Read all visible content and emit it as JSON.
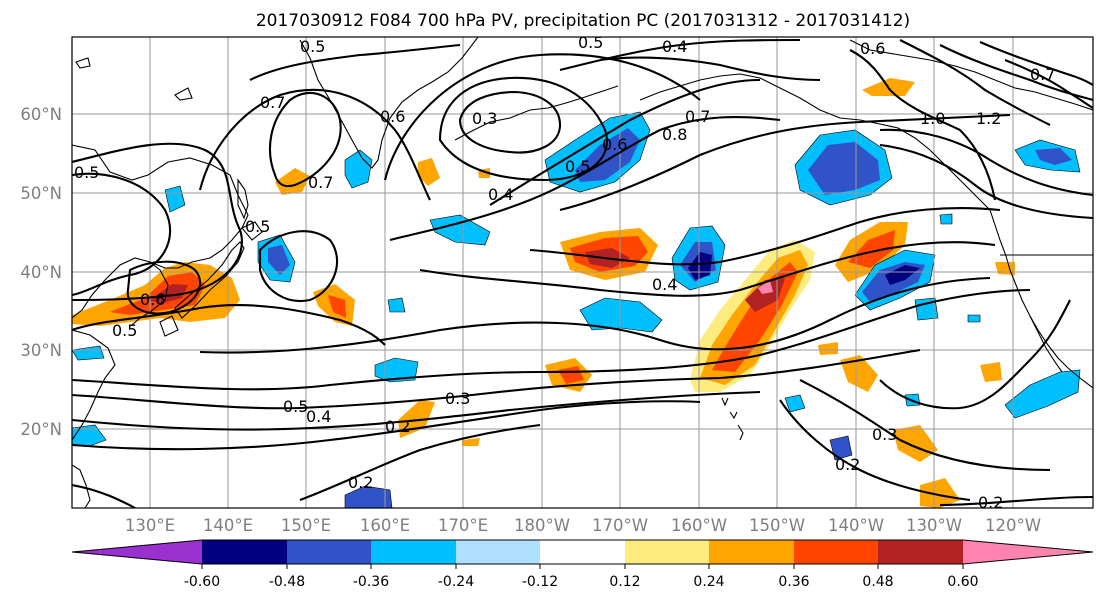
{
  "title": "2017030912 F084 700 hPa PV, precipitation PC (2017031312 - 2017031412)",
  "lat_labels": [
    "60°N",
    "50°N",
    "40°N",
    "30°N",
    "20°N"
  ],
  "lon_labels": [
    "130°E",
    "140°E",
    "150°E",
    "160°E",
    "170°E",
    "180°W",
    "170°W",
    "160°W",
    "150°W",
    "140°W",
    "130°W",
    "120°W"
  ],
  "colorbar": {
    "colors": [
      "#9b30d0",
      "#000080",
      "#3153c8",
      "#00bfff",
      "#b0e0ff",
      "#ffffff",
      "#ffec80",
      "#ffa500",
      "#ff4500",
      "#b22222",
      "#ff85b0"
    ],
    "tick_labels": [
      "-0.60",
      "-0.48",
      "-0.36",
      "-0.24",
      "-0.12",
      "0.12",
      "0.24",
      "0.36",
      "0.48",
      "0.60"
    ]
  },
  "contour_labels": [
    "0.5",
    "0.5",
    "0.4",
    "0.6",
    "0.7",
    "0.6",
    "0.3",
    "0.7",
    "0.5",
    "0.6",
    "0.7",
    "0.8",
    "1.0",
    "1.2",
    "0.5",
    "0.7",
    "0.4",
    "0.5",
    "0.6",
    "0.4",
    "0.5",
    "0.4",
    "0.3",
    "0.2",
    "0.2",
    "0.3",
    "0.2",
    "0.2",
    "0.5"
  ]
}
